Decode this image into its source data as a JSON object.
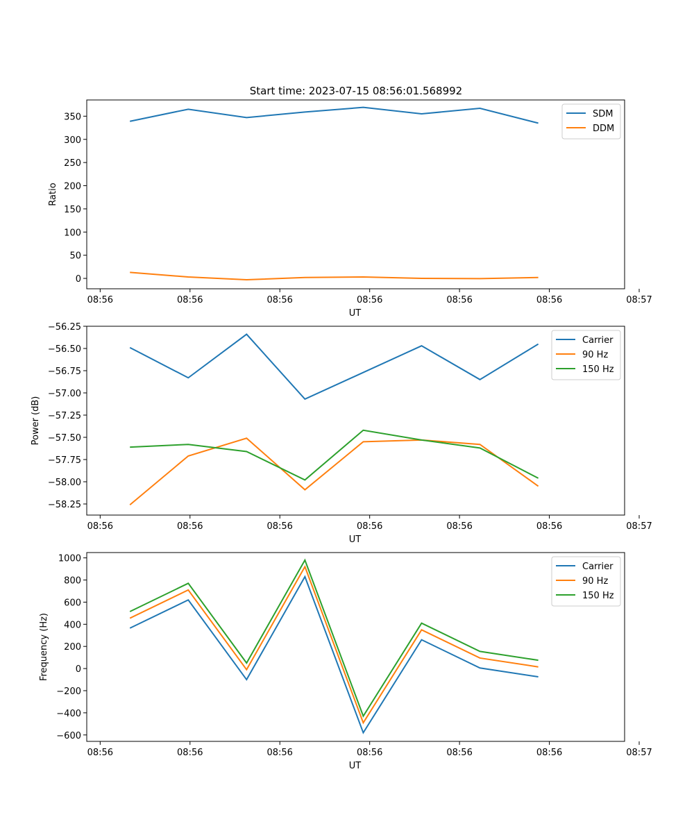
{
  "figure": {
    "title": "Start time: 2023-07-15 08:56:01.568992"
  },
  "chart_data": [
    {
      "type": "line",
      "xlabel": "UT",
      "ylabel": "Ratio",
      "x": [
        0,
        1,
        2,
        3,
        4,
        5,
        6,
        7
      ],
      "xlim": [
        -0.74,
        8.48
      ],
      "x_ticks": [
        -0.51,
        1.03,
        2.57,
        4.11,
        5.65,
        7.19,
        8.73
      ],
      "x_tick_labels": [
        "08:56",
        "08:56",
        "08:56",
        "08:56",
        "08:56",
        "08:56",
        "08:57"
      ],
      "ylim": [
        -22.4,
        385
      ],
      "y_ticks": [
        0,
        50,
        100,
        150,
        200,
        250,
        300,
        350
      ],
      "y_tick_labels": [
        "0",
        "50",
        "100",
        "150",
        "200",
        "250",
        "300",
        "350"
      ],
      "legend_position": "top-right",
      "series": [
        {
          "name": "SDM",
          "color": "#1f77b4",
          "values": [
            339,
            365,
            347,
            359,
            369,
            355,
            367,
            335
          ]
        },
        {
          "name": "DDM",
          "color": "#ff7f0e",
          "values": [
            13,
            3,
            -3,
            2,
            3,
            0,
            -0.5,
            2
          ]
        }
      ]
    },
    {
      "type": "line",
      "xlabel": "UT",
      "ylabel": "Power (dB)",
      "x": [
        0,
        1,
        2,
        3,
        4,
        5,
        6,
        7
      ],
      "xlim": [
        -0.74,
        8.48
      ],
      "x_ticks": [
        -0.51,
        1.03,
        2.57,
        4.11,
        5.65,
        7.19,
        8.73
      ],
      "x_tick_labels": [
        "08:56",
        "08:56",
        "08:56",
        "08:56",
        "08:56",
        "08:56",
        "08:57"
      ],
      "ylim": [
        -58.375,
        -56.25
      ],
      "y_ticks": [
        -58.25,
        -58.0,
        -57.75,
        -57.5,
        -57.25,
        -57.0,
        -56.75,
        -56.5,
        -56.25
      ],
      "y_tick_labels": [
        "−58.25",
        "−58.00",
        "−57.75",
        "−57.50",
        "−57.25",
        "−57.00",
        "−56.75",
        "−56.50",
        "−56.25"
      ],
      "legend_position": "top-right",
      "series": [
        {
          "name": "Carrier",
          "color": "#1f77b4",
          "values": [
            -56.49,
            -56.83,
            -56.34,
            -57.07,
            -56.77,
            -56.47,
            -56.85,
            -56.45
          ]
        },
        {
          "name": "90 Hz",
          "color": "#ff7f0e",
          "values": [
            -58.26,
            -57.71,
            -57.51,
            -58.09,
            -57.55,
            -57.53,
            -57.58,
            -58.05
          ]
        },
        {
          "name": "150 Hz",
          "color": "#2ca02c",
          "values": [
            -57.61,
            -57.58,
            -57.66,
            -57.98,
            -57.42,
            -57.53,
            -57.62,
            -57.96
          ]
        }
      ]
    },
    {
      "type": "line",
      "xlabel": "UT",
      "ylabel": "Frequency (Hz)",
      "x": [
        0,
        1,
        2,
        3,
        4,
        5,
        6,
        7
      ],
      "xlim": [
        -0.74,
        8.48
      ],
      "x_ticks": [
        -0.51,
        1.03,
        2.57,
        4.11,
        5.65,
        7.19,
        8.73
      ],
      "x_tick_labels": [
        "08:56",
        "08:56",
        "08:56",
        "08:56",
        "08:56",
        "08:56",
        "08:57"
      ],
      "ylim": [
        -658,
        1048
      ],
      "y_ticks": [
        -600,
        -400,
        -200,
        0,
        200,
        400,
        600,
        800,
        1000
      ],
      "y_tick_labels": [
        "−600",
        "−400",
        "−200",
        "0",
        "200",
        "400",
        "600",
        "800",
        "1000"
      ],
      "legend_position": "top-right",
      "series": [
        {
          "name": "Carrier",
          "color": "#1f77b4",
          "values": [
            365,
            620,
            -100,
            830,
            -580,
            260,
            5,
            -75
          ]
        },
        {
          "name": "90 Hz",
          "color": "#ff7f0e",
          "values": [
            455,
            710,
            -10,
            920,
            -490,
            350,
            95,
            15
          ]
        },
        {
          "name": "150 Hz",
          "color": "#2ca02c",
          "values": [
            515,
            770,
            50,
            980,
            -430,
            410,
            155,
            75
          ]
        }
      ]
    }
  ]
}
